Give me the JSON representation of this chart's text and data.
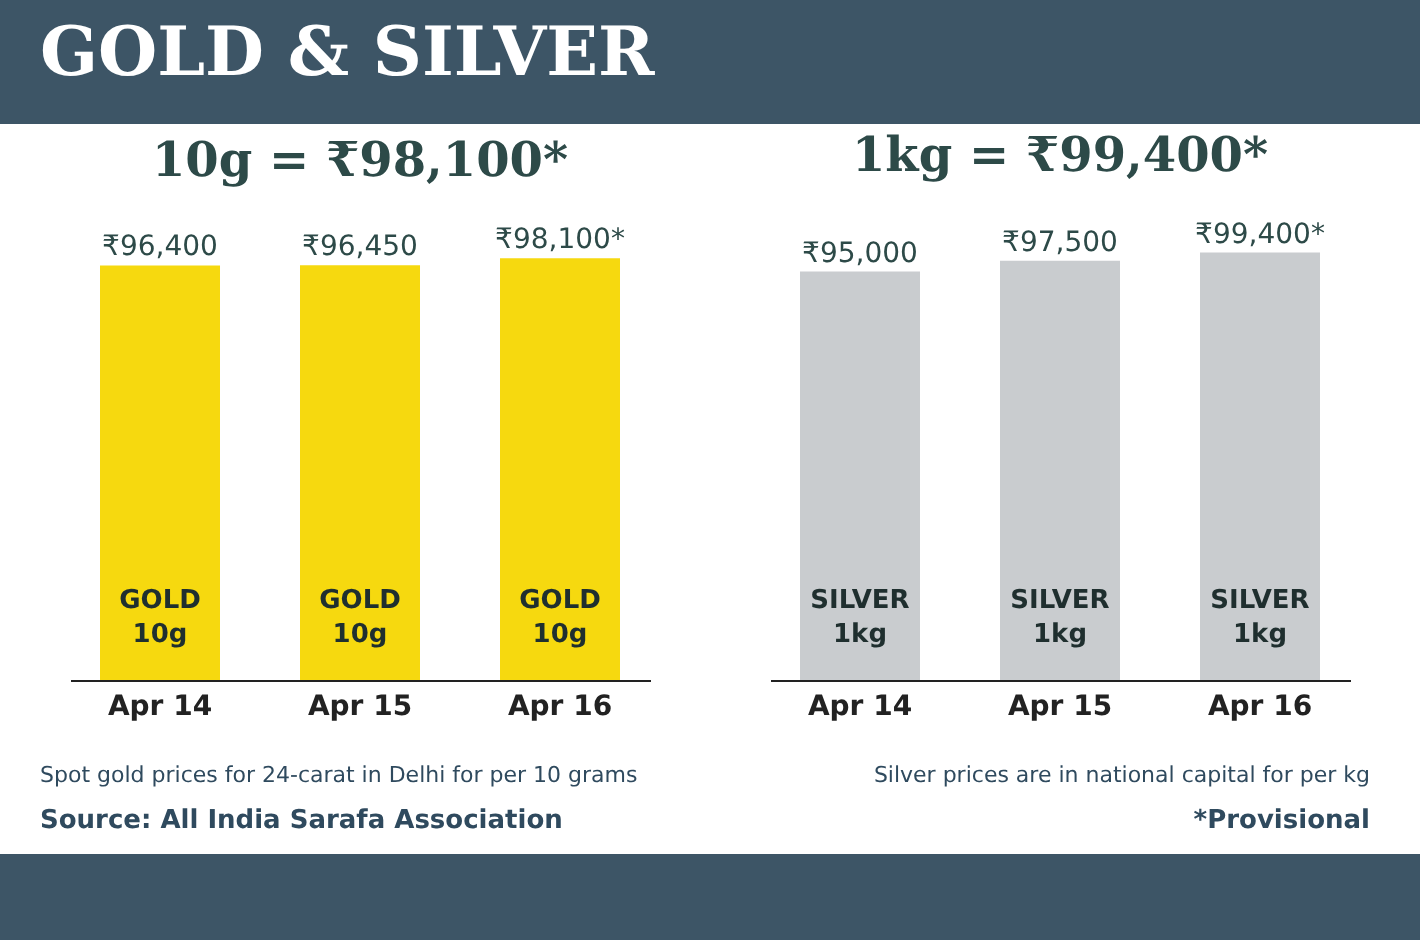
{
  "chart_data": [
    {
      "type": "bar",
      "title": "GOLD & SILVER",
      "subtitle": "10g = ₹98,100*",
      "categories": [
        "Apr 14",
        "Apr 15",
        "Apr 16"
      ],
      "values": [
        96400,
        96450,
        98100
      ],
      "color": "#f6d90f",
      "value_labels": [
        "₹96,400",
        "₹96,450",
        "₹98,100*"
      ],
      "tick_labels": "x",
      "annotations": [
        "GOLD 10g",
        "GOLD 10g",
        "GOLD 10g",
        "Spot gold prices for 24-carat in Delhi for per 10 grams",
        "Source: All India Sarafa Association"
      ]
    },
    {
      "type": "bar",
      "subtitle": "1kg = ₹99,400*",
      "categories": [
        "Apr 14",
        "Apr 15",
        "Apr 16"
      ],
      "values": [
        95000,
        97500,
        99400
      ],
      "color": "#c9cccf",
      "value_labels": [
        "₹95,000",
        "₹97,500",
        "₹99,400*"
      ],
      "tick_labels": "x",
      "annotations": [
        "SILVER 1kg",
        "SILVER 1kg",
        "SILVER 1kg",
        "Silver prices are in national capital for per kg",
        "*Provisional"
      ]
    }
  ]
}
